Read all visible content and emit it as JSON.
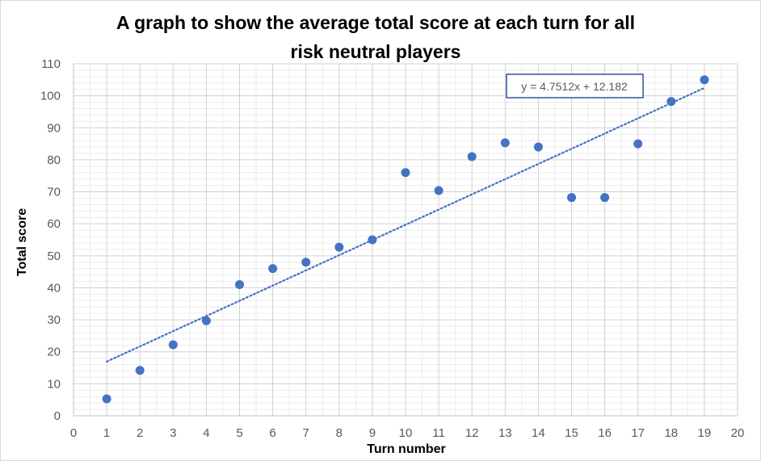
{
  "chart_data": {
    "type": "scatter",
    "title_lines": [
      "A graph to show the average total score at each turn for all",
      "risk neutral players"
    ],
    "xlabel": "Turn number",
    "ylabel": "Total score",
    "xlim": [
      0,
      20
    ],
    "ylim": [
      0,
      110
    ],
    "x_ticks": [
      0,
      1,
      2,
      3,
      4,
      5,
      6,
      7,
      8,
      9,
      10,
      11,
      12,
      13,
      14,
      15,
      16,
      17,
      18,
      19,
      20
    ],
    "y_ticks": [
      0,
      10,
      20,
      30,
      40,
      50,
      60,
      70,
      80,
      90,
      100,
      110
    ],
    "grid": "major-and-minor",
    "series": [
      {
        "x": [
          1,
          2,
          3,
          4,
          5,
          6,
          7,
          8,
          9,
          10,
          11,
          12,
          13,
          14,
          15,
          16,
          17,
          18,
          19
        ],
        "y": [
          5.3,
          14.2,
          22.2,
          29.7,
          41.0,
          46.0,
          48.0,
          52.7,
          55.0,
          76.0,
          70.4,
          81.0,
          85.3,
          84.0,
          68.2,
          68.2,
          85.0,
          98.2,
          105.0
        ]
      }
    ],
    "trendline": {
      "type": "linear",
      "slope": 4.7512,
      "intercept": 12.182,
      "x_range": [
        1,
        19
      ],
      "style": "dotted",
      "label": "y = 4.7512x + 12.182"
    },
    "colors": {
      "marker": "#4472C4",
      "trendline": "#4472C4",
      "grid": "#d9d9d9",
      "axis": "#bfbfbf",
      "label_box_border": "#2f5597"
    }
  }
}
